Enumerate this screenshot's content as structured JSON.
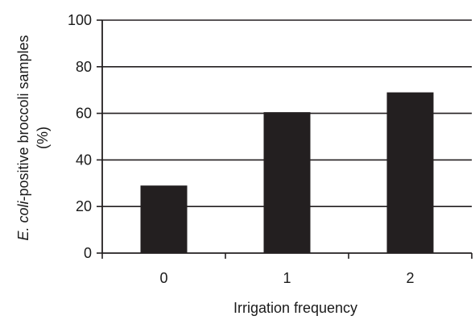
{
  "chart_data": {
    "type": "bar",
    "title": "",
    "xlabel": "Irrigation frequency",
    "ylabel_line1_prefix": "E. coli",
    "ylabel_line1_suffix": "-positive broccoli samples",
    "ylabel_line2": "(%)",
    "categories": [
      "0",
      "1",
      "2"
    ],
    "values": [
      29,
      60.5,
      69
    ],
    "ylim": [
      0,
      100
    ],
    "yticks": [
      0,
      20,
      40,
      60,
      80,
      100
    ],
    "grid": true,
    "legend": "none",
    "bar_color": "#231f20",
    "axis_color": "#231f20"
  }
}
